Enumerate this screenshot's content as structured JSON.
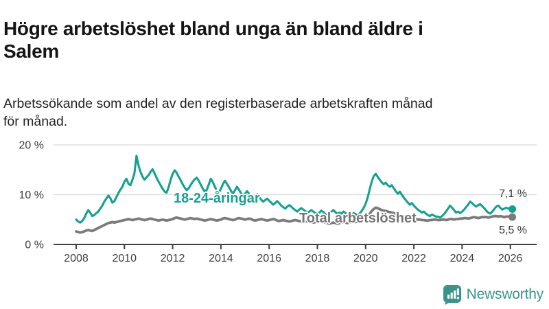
{
  "header": {
    "title": "Högre arbetslöshet bland unga än bland äldre i Salem",
    "subtitle": "Arbetssökande som andel av den registerbaserade arbetskraften månad för månad."
  },
  "footer": {
    "brand": "Newsworthy",
    "logo_icon": "bar-chart-speech-bubble-icon",
    "brand_color": "#3a948c"
  },
  "chart_data": {
    "type": "line",
    "unit": "%",
    "frequency": "monthly",
    "x_start": {
      "year": 2008,
      "month": 1
    },
    "x_end": {
      "year": 2026,
      "month": 2
    },
    "x_ticks": [
      2008,
      2010,
      2012,
      2014,
      2016,
      2018,
      2020,
      2022,
      2024,
      2026
    ],
    "y_ticks": [
      {
        "value": 0,
        "label": "0 %"
      },
      {
        "value": 10,
        "label": "10 %"
      },
      {
        "value": 20,
        "label": "20 %"
      }
    ],
    "ylim": [
      0,
      21
    ],
    "grid": "horizontal",
    "grid_color": "#d9d9d9",
    "axis_color": "#3f3f3f",
    "axis_text_color": "#3d3d3d",
    "legend_position": "inline-labels",
    "series": [
      {
        "name": "18-24-åringar",
        "color": "#16a091",
        "label_color": "#16a091",
        "end_label": "7,1 %",
        "end_value": 7.1,
        "values": [
          5.0,
          4.6,
          4.4,
          4.7,
          5.3,
          6.2,
          6.9,
          6.4,
          5.7,
          5.9,
          6.3,
          6.6,
          7.2,
          7.8,
          8.6,
          9.2,
          9.8,
          9.3,
          8.4,
          8.7,
          9.5,
          10.3,
          11.0,
          11.6,
          12.6,
          13.2,
          12.2,
          11.9,
          13.0,
          14.3,
          17.8,
          15.9,
          14.6,
          13.6,
          13.0,
          13.5,
          13.9,
          14.6,
          15.1,
          14.3,
          13.4,
          12.6,
          11.9,
          11.2,
          10.6,
          10.4,
          11.5,
          13.0,
          14.2,
          14.9,
          14.4,
          13.6,
          12.9,
          12.1,
          11.4,
          10.9,
          11.3,
          12.0,
          12.6,
          13.1,
          13.4,
          12.8,
          12.0,
          11.2,
          10.6,
          11.0,
          12.1,
          13.2,
          12.5,
          11.6,
          10.8,
          10.4,
          11.2,
          12.1,
          12.8,
          12.2,
          11.5,
          10.8,
          10.2,
          10.9,
          11.6,
          11.0,
          10.3,
          9.8,
          10.2,
          10.7,
          10.2,
          9.7,
          9.2,
          9.6,
          10.1,
          9.6,
          9.0,
          8.6,
          8.9,
          9.2,
          8.8,
          8.4,
          8.0,
          8.3,
          8.7,
          8.3,
          7.8,
          7.5,
          7.2,
          7.6,
          7.9,
          7.6,
          7.2,
          6.9,
          6.6,
          7.0,
          7.3,
          7.0,
          6.7,
          6.4,
          6.6,
          6.9,
          6.6,
          6.3,
          6.1,
          6.4,
          6.8,
          6.5,
          6.1,
          5.8,
          6.2,
          6.6,
          6.9,
          6.5,
          6.1,
          6.4,
          6.2,
          6.6,
          6.3,
          5.9,
          5.6,
          5.9,
          6.3,
          6.1,
          5.8,
          6.2,
          6.7,
          7.3,
          8.2,
          9.4,
          11.0,
          12.6,
          13.7,
          14.2,
          13.6,
          13.0,
          12.5,
          12.1,
          12.4,
          11.9,
          11.6,
          11.9,
          11.3,
          10.7,
          10.2,
          10.6,
          10.0,
          9.4,
          8.9,
          8.4,
          8.0,
          8.3,
          7.8,
          7.4,
          7.0,
          6.7,
          6.4,
          6.6,
          6.2,
          5.9,
          5.7,
          6.0,
          5.8,
          5.6,
          5.6,
          5.4,
          5.7,
          6.1,
          6.6,
          7.2,
          7.8,
          7.4,
          6.9,
          6.4,
          6.6,
          6.3,
          6.6,
          7.0,
          7.5,
          8.0,
          8.6,
          8.3,
          7.9,
          7.6,
          7.9,
          8.1,
          7.7,
          7.3,
          6.8,
          6.4,
          6.2,
          6.6,
          7.1,
          7.6,
          7.8,
          7.4,
          7.0,
          7.2,
          7.4,
          7.2,
          7.3,
          7.1
        ]
      },
      {
        "name": "Total arbetslöshet",
        "color": "#7b7b7b",
        "label_color": "#757575",
        "end_label": "5,5 %",
        "end_value": 5.5,
        "values": [
          2.6,
          2.5,
          2.4,
          2.5,
          2.6,
          2.8,
          2.9,
          2.8,
          2.7,
          2.9,
          3.1,
          3.3,
          3.5,
          3.7,
          3.9,
          4.1,
          4.3,
          4.4,
          4.5,
          4.4,
          4.5,
          4.6,
          4.7,
          4.8,
          4.9,
          5.0,
          5.1,
          5.0,
          4.9,
          5.0,
          5.1,
          5.2,
          5.1,
          5.0,
          4.9,
          5.0,
          5.1,
          5.2,
          5.1,
          5.0,
          4.9,
          4.8,
          4.9,
          5.0,
          4.9,
          4.8,
          4.9,
          5.0,
          5.1,
          5.3,
          5.4,
          5.3,
          5.2,
          5.1,
          5.0,
          5.1,
          5.2,
          5.3,
          5.2,
          5.1,
          5.2,
          5.1,
          5.0,
          4.9,
          4.8,
          4.9,
          5.0,
          5.1,
          5.0,
          4.9,
          4.8,
          4.9,
          5.0,
          5.2,
          5.3,
          5.2,
          5.1,
          5.0,
          4.9,
          5.0,
          5.2,
          5.3,
          5.2,
          5.1,
          5.0,
          5.1,
          5.2,
          5.1,
          4.9,
          4.8,
          4.9,
          5.0,
          5.1,
          5.0,
          4.9,
          4.8,
          4.9,
          5.0,
          5.1,
          5.0,
          4.8,
          4.7,
          4.8,
          4.9,
          4.8,
          4.7,
          4.6,
          4.7,
          4.8,
          4.9,
          4.8,
          4.7,
          4.6,
          4.5,
          4.6,
          4.7,
          4.6,
          4.5,
          4.4,
          4.5,
          4.6,
          4.7,
          4.6,
          4.5,
          4.4,
          4.3,
          4.2,
          4.3,
          4.4,
          4.3,
          4.2,
          4.3,
          4.4,
          4.5,
          4.4,
          4.3,
          4.4,
          4.5,
          4.6,
          4.5,
          4.6,
          4.7,
          4.8,
          5.0,
          5.3,
          5.6,
          6.1,
          6.7,
          7.1,
          7.4,
          7.3,
          7.1,
          6.9,
          6.8,
          6.7,
          6.6,
          6.5,
          6.4,
          6.3,
          6.1,
          5.9,
          5.8,
          5.7,
          5.6,
          5.5,
          5.4,
          5.3,
          5.3,
          5.2,
          5.1,
          5.0,
          5.0,
          4.9,
          4.9,
          4.8,
          4.8,
          4.9,
          4.9,
          5.0,
          5.0,
          4.9,
          4.9,
          5.0,
          5.0,
          4.9,
          5.0,
          5.1,
          5.1,
          5.0,
          5.1,
          5.1,
          5.2,
          5.2,
          5.3,
          5.3,
          5.2,
          5.3,
          5.4,
          5.5,
          5.4,
          5.3,
          5.4,
          5.5,
          5.5,
          5.5,
          5.4,
          5.5,
          5.6,
          5.7,
          5.7,
          5.6,
          5.7,
          5.6,
          5.5,
          5.6,
          5.6,
          5.6,
          5.5
        ]
      }
    ]
  }
}
